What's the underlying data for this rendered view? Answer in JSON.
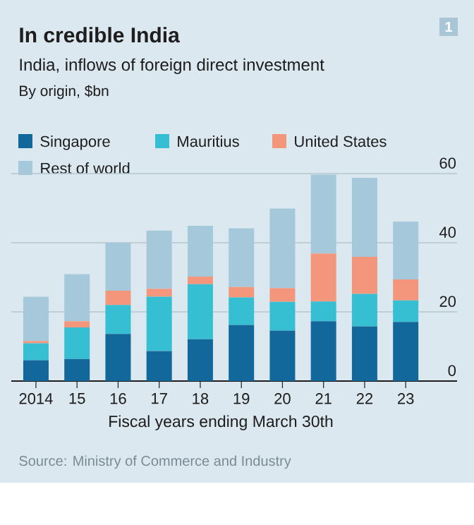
{
  "chart_data": {
    "type": "bar",
    "title": "In credible India",
    "subtitle": "India, inflows of foreign direct investment",
    "ylabel": "By origin, $bn",
    "xlabel": "Fiscal years ending March 30th",
    "annotations": [
      "1",
      "Source: Ministry of Commerce and Industry"
    ],
    "categories": [
      "2014",
      "15",
      "16",
      "17",
      "18",
      "19",
      "20",
      "21",
      "22",
      "23"
    ],
    "stacked": true,
    "series": [
      {
        "name": "Singapore",
        "color": "#12689a",
        "values": [
          6.0,
          6.4,
          13.6,
          8.7,
          12.1,
          16.2,
          14.6,
          17.3,
          15.8,
          17.1
        ]
      },
      {
        "name": "Mauritius",
        "color": "#36bfd2",
        "values": [
          4.9,
          9.1,
          8.4,
          15.7,
          15.9,
          8.0,
          8.3,
          5.7,
          9.4,
          6.2
        ]
      },
      {
        "name": "United States",
        "color": "#f4967b",
        "values": [
          0.7,
          1.8,
          4.1,
          2.3,
          2.2,
          3.0,
          4.0,
          13.9,
          10.7,
          6.1
        ]
      },
      {
        "name": "Rest of world",
        "color": "#a5c9db",
        "values": [
          12.8,
          13.6,
          13.9,
          16.8,
          14.7,
          17.0,
          23.0,
          22.8,
          22.9,
          16.7
        ]
      }
    ],
    "ylim": [
      0,
      60
    ],
    "yticks": [
      0,
      20,
      40,
      60
    ],
    "grid": "y",
    "legend": "top"
  }
}
